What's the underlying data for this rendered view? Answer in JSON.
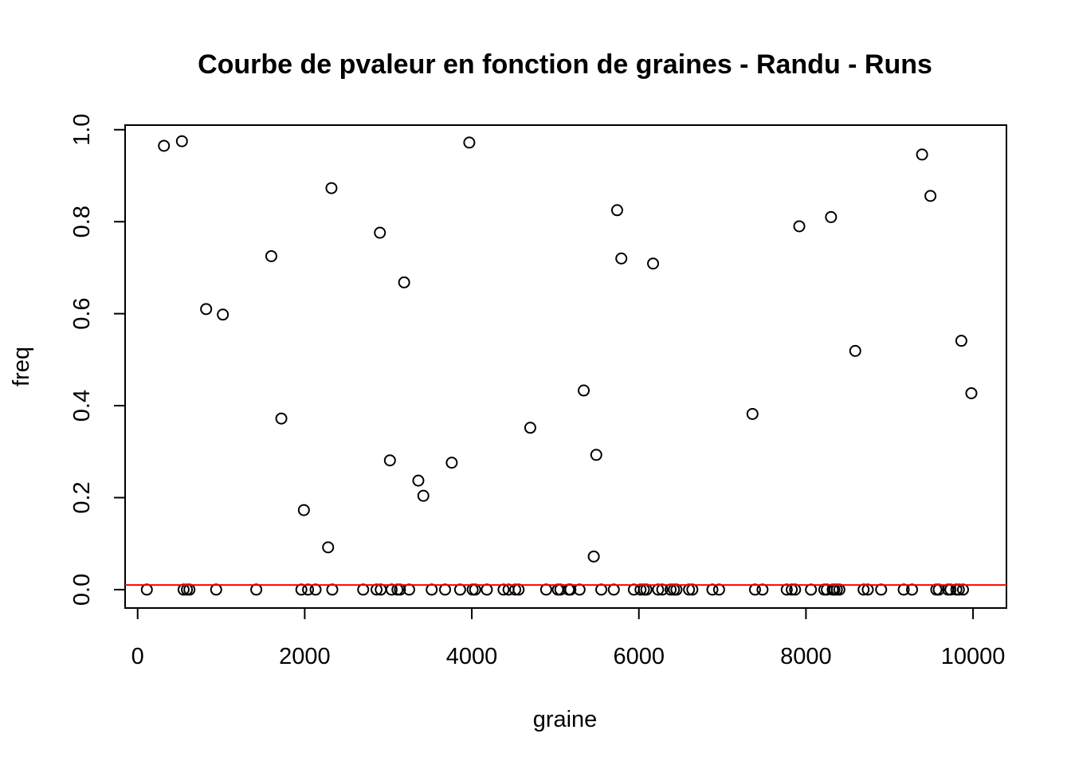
{
  "chart_data": {
    "type": "scatter",
    "title": "Courbe de pvaleur en fonction de graines - Randu - Runs",
    "xlabel": "graine",
    "ylabel": "freq",
    "xlim": [
      -150,
      10400
    ],
    "ylim": [
      -0.04,
      1.01
    ],
    "xticks": [
      0,
      2000,
      4000,
      6000,
      8000,
      10000
    ],
    "xtick_labels": [
      "0",
      "2000",
      "4000",
      "6000",
      "8000",
      "10000"
    ],
    "yticks": [
      0.0,
      0.2,
      0.4,
      0.6,
      0.8,
      1.0
    ],
    "ytick_labels": [
      "0.0",
      "0.2",
      "0.4",
      "0.6",
      "0.8",
      "1.0"
    ],
    "reference_line": {
      "y": 0.01,
      "color": "#ff0000"
    },
    "series": [
      {
        "name": "pvaleur",
        "x": [
          110,
          315,
          530,
          550,
          590,
          620,
          820,
          940,
          1020,
          1420,
          1600,
          1720,
          1960,
          1990,
          2040,
          2130,
          2280,
          2320,
          2330,
          2700,
          2860,
          2900,
          2910,
          3020,
          3040,
          3110,
          3140,
          3190,
          3250,
          3360,
          3420,
          3520,
          3680,
          3760,
          3860,
          3970,
          4010,
          4040,
          4180,
          4380,
          4440,
          4520,
          4560,
          4700,
          4890,
          5030,
          5060,
          5160,
          5180,
          5290,
          5340,
          5460,
          5490,
          5550,
          5700,
          5740,
          5790,
          5940,
          6020,
          6060,
          6090,
          6170,
          6230,
          6280,
          6380,
          6420,
          6450,
          6600,
          6640,
          6880,
          6960,
          7360,
          7390,
          7480,
          7770,
          7830,
          7870,
          7920,
          8060,
          8220,
          8250,
          8300,
          8320,
          8340,
          8370,
          8400,
          8590,
          8690,
          8740,
          8900,
          9170,
          9270,
          9390,
          9490,
          9560,
          9590,
          9700,
          9730,
          9800,
          9830,
          9860,
          9880,
          9980
        ],
        "y": [
          0.0,
          0.965,
          0.975,
          0.0,
          0.0,
          0.0,
          0.61,
          0.0,
          0.598,
          0.0,
          0.725,
          0.372,
          0.0,
          0.173,
          0.0,
          0.0,
          0.092,
          0.873,
          0.0,
          0.0,
          0.0,
          0.776,
          0.0,
          0.281,
          0.0,
          0.0,
          0.0,
          0.668,
          0.0,
          0.237,
          0.204,
          0.0,
          0.0,
          0.276,
          0.0,
          0.972,
          0.0,
          0.0,
          0.0,
          0.0,
          0.0,
          0.0,
          0.0,
          0.352,
          0.0,
          0.0,
          0.0,
          0.0,
          0.0,
          0.0,
          0.433,
          0.072,
          0.293,
          0.0,
          0.0,
          0.825,
          0.72,
          0.0,
          0.0,
          0.0,
          0.0,
          0.709,
          0.0,
          0.0,
          0.0,
          0.0,
          0.0,
          0.0,
          0.0,
          0.0,
          0.0,
          0.382,
          0.0,
          0.0,
          0.0,
          0.0,
          0.0,
          0.79,
          0.0,
          0.0,
          0.0,
          0.81,
          0.0,
          0.0,
          0.0,
          0.0,
          0.519,
          0.0,
          0.0,
          0.0,
          0.0,
          0.0,
          0.946,
          0.856,
          0.0,
          0.0,
          0.0,
          0.0,
          0.0,
          0.0,
          0.541,
          0.0,
          0.427
        ]
      }
    ]
  }
}
